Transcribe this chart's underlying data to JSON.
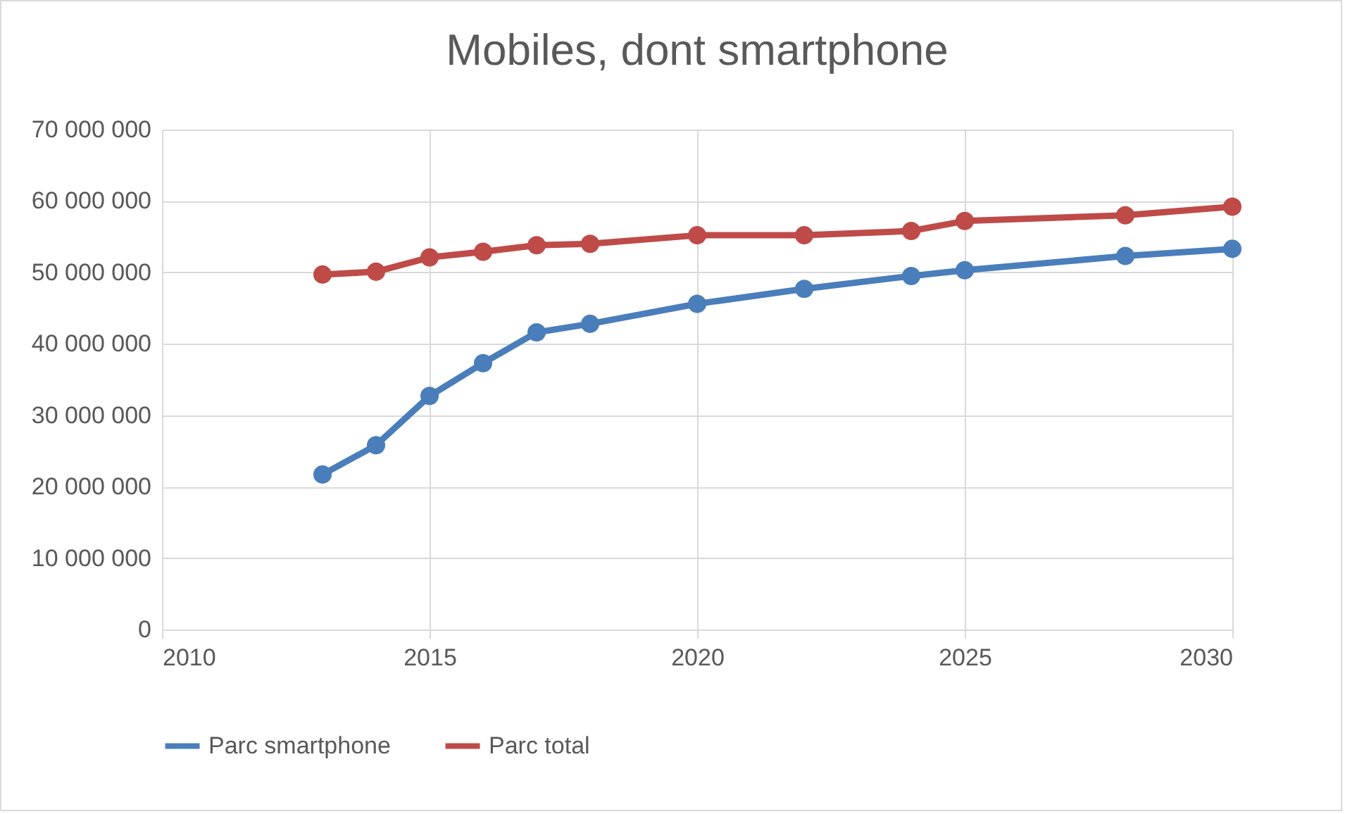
{
  "chart_data": {
    "type": "line",
    "title": "Mobiles, dont smartphone",
    "x": [
      2013,
      2014,
      2015,
      2016,
      2017,
      2018,
      2020,
      2022,
      2024,
      2025,
      2028,
      2030
    ],
    "series": [
      {
        "name": "Parc smartphone",
        "color": "#4a7ebb",
        "values": [
          21700000,
          25800000,
          32700000,
          37300000,
          41600000,
          42800000,
          45600000,
          47700000,
          49500000,
          50300000,
          52300000,
          53300000
        ]
      },
      {
        "name": "Parc total",
        "color": "#be4b48",
        "values": [
          49700000,
          50100000,
          52100000,
          52900000,
          53800000,
          54000000,
          55200000,
          55200000,
          55800000,
          57200000,
          58000000,
          59200000
        ]
      }
    ],
    "xlim": [
      2010,
      2030
    ],
    "xticks": [
      2010,
      2015,
      2020,
      2025,
      2030
    ],
    "ylim": [
      0,
      70000000
    ],
    "yticks": [
      0,
      {
        "value": 10000000,
        "label": "10 000 000"
      },
      {
        "value": 20000000,
        "label": "20 000 000"
      },
      {
        "value": 30000000,
        "label": "30 000 000"
      },
      {
        "value": 40000000,
        "label": "40 000 000"
      },
      {
        "value": 50000000,
        "label": "50 000 000"
      },
      {
        "value": 60000000,
        "label": "60 000 000"
      },
      {
        "value": 70000000,
        "label": "70 000 000"
      }
    ],
    "grid": true,
    "legend": "bottom",
    "marker": "circle",
    "line_style": "solid"
  }
}
